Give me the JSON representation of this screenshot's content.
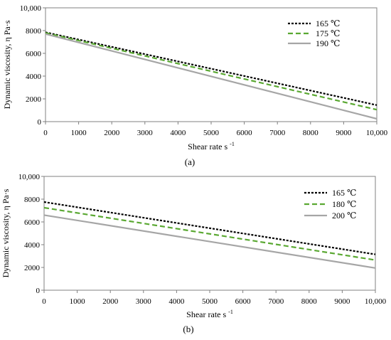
{
  "chart_data": [
    {
      "type": "line",
      "panel_label": "(a)",
      "xlabel": "Shear rate s",
      "xlabel_sup": "-1",
      "ylabel": "Dynamic viscosity, η Pa·s",
      "xlim": [
        0,
        10000
      ],
      "ylim": [
        0,
        10000
      ],
      "x_ticks": [
        0,
        1000,
        2000,
        3000,
        4000,
        5000,
        6000,
        7000,
        8000,
        9000,
        10000
      ],
      "x_tick_labels": [
        "0",
        "1000",
        "2000",
        "3000",
        "4000",
        "5000",
        "6000",
        "7000",
        "8000",
        "9000",
        "10,000"
      ],
      "y_ticks": [
        0,
        2000,
        4000,
        6000,
        8000,
        10000
      ],
      "y_tick_labels": [
        "0",
        "2000",
        "4000",
        "6000",
        "8000",
        "10,000"
      ],
      "grid": false,
      "legend_position": "top-right",
      "x": [
        0,
        10000
      ],
      "series": [
        {
          "name": "165 ℃",
          "values": [
            7850,
            1450
          ],
          "color": "#000000",
          "style": "dotted"
        },
        {
          "name": "175 ℃",
          "values": [
            7800,
            1050
          ],
          "color": "#5aa832",
          "style": "dashed"
        },
        {
          "name": "190 ℃",
          "values": [
            7700,
            250
          ],
          "color": "#a6a6a6",
          "style": "solid"
        }
      ]
    },
    {
      "type": "line",
      "panel_label": "(b)",
      "xlabel": "Shear rate s",
      "xlabel_sup": "-1",
      "ylabel": "Dynamic viscosity, η Pa·s",
      "xlim": [
        0,
        10000
      ],
      "ylim": [
        0,
        10000
      ],
      "x_ticks": [
        0,
        1000,
        2000,
        3000,
        4000,
        5000,
        6000,
        7000,
        8000,
        9000,
        10000
      ],
      "x_tick_labels": [
        "0",
        "1000",
        "2000",
        "3000",
        "4000",
        "5000",
        "6000",
        "7000",
        "8000",
        "9000",
        "10,000"
      ],
      "y_ticks": [
        0,
        2000,
        4000,
        6000,
        8000,
        10000
      ],
      "y_tick_labels": [
        "0",
        "2000",
        "4000",
        "6000",
        "8000",
        "10,000"
      ],
      "grid": false,
      "legend_position": "top-right",
      "x": [
        0,
        10000
      ],
      "series": [
        {
          "name": "165 ℃",
          "values": [
            7750,
            3150
          ],
          "color": "#000000",
          "style": "dotted"
        },
        {
          "name": "180 ℃",
          "values": [
            7250,
            2650
          ],
          "color": "#5aa832",
          "style": "dashed"
        },
        {
          "name": "200 ℃",
          "values": [
            6600,
            1950
          ],
          "color": "#a6a6a6",
          "style": "solid"
        }
      ]
    }
  ]
}
